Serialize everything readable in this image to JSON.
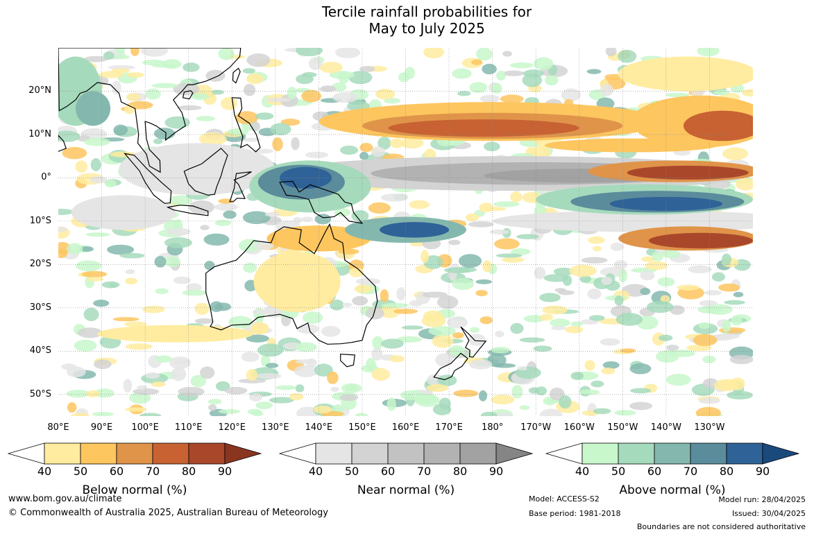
{
  "title": {
    "line1": "Tercile rainfall probabilities for",
    "line2": "May to July 2025"
  },
  "map": {
    "latitude_labels": [
      "20°N",
      "10°N",
      "0°",
      "10°S",
      "20°S",
      "30°S",
      "40°S",
      "50°S"
    ],
    "longitude_labels": [
      "80°E",
      "90°E",
      "100°E",
      "110°E",
      "120°E",
      "130°E",
      "140°E",
      "150°E",
      "160°E",
      "170°E",
      "180°",
      "170°W",
      "160°W",
      "150°W",
      "140°W",
      "130°W"
    ],
    "extent": {
      "lon_min": 80,
      "lon_max": 240,
      "lat_min": -55,
      "lat_max": 30
    },
    "background_color": "#ffffff",
    "coastline_color": "#000000"
  },
  "colorbars": [
    {
      "title": "Below normal (%)",
      "ticks": [
        "40",
        "50",
        "60",
        "70",
        "80",
        "90"
      ],
      "colors": [
        "#ffeca0",
        "#fdc65f",
        "#e0944a",
        "#c86232",
        "#a9472b",
        "#8a3520"
      ]
    },
    {
      "title": "Near normal (%)",
      "ticks": [
        "40",
        "50",
        "60",
        "70",
        "80",
        "90"
      ],
      "colors": [
        "#e5e5e5",
        "#d3d3d3",
        "#c2c2c2",
        "#b2b2b2",
        "#a2a2a2",
        "#858585"
      ]
    },
    {
      "title": "Above normal (%)",
      "ticks": [
        "40",
        "50",
        "60",
        "70",
        "80",
        "90"
      ],
      "colors": [
        "#c8f7cb",
        "#a6dabc",
        "#84b8ae",
        "#5b8c9c",
        "#2f6297",
        "#1a4a7c"
      ]
    }
  ],
  "footer": {
    "website": "www.bom.gov.au/climate",
    "copyright": "© Commonwealth of Australia 2025, Australian Bureau of Meteorology",
    "model": "Model: ACCESS-S2",
    "base_period": "Base period: 1981-2018",
    "model_run": "Model run: 28/04/2025",
    "issued": "Issued: 30/04/2025",
    "disclaimer": "Boundaries are not considered authoritative"
  }
}
